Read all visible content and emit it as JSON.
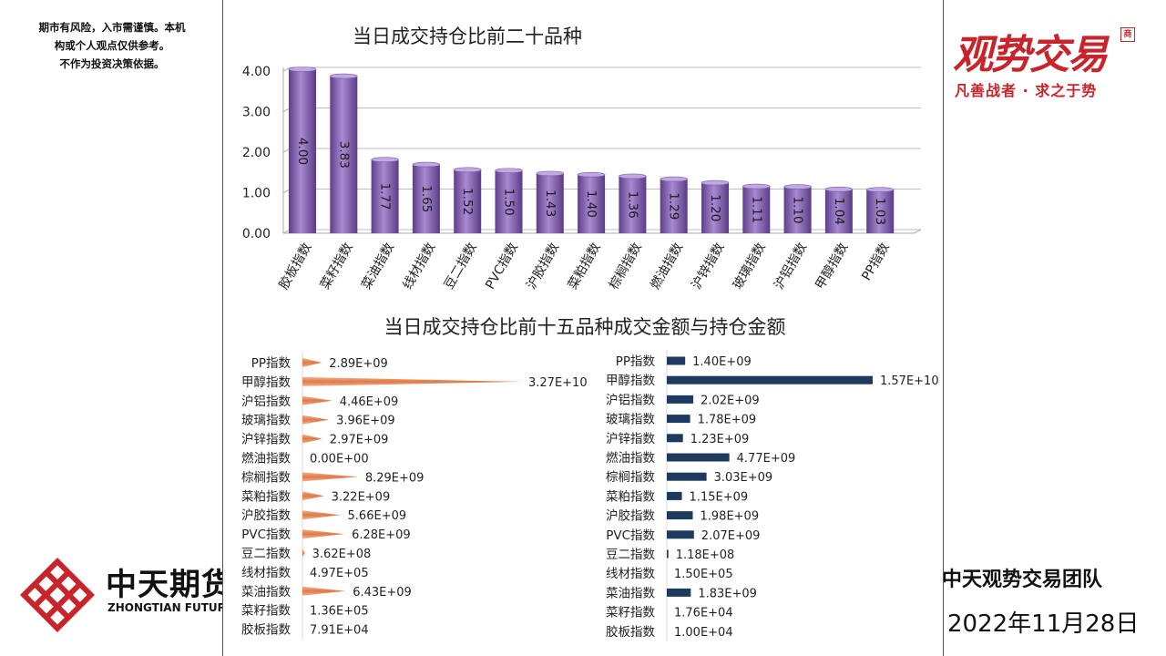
{
  "disclaimer": {
    "line1": "期市有风险，入市需谨慎。本机",
    "line2": "构或个人观点仅供参考。",
    "line3": "不作为投资决策依据。"
  },
  "logo_left": {
    "cn": "中天期货",
    "en": "ZHONGTIAN FUTURES"
  },
  "brand": {
    "title": "观势交易",
    "seal": "商",
    "slogan": "凡善战者 · 求之于势"
  },
  "footer": {
    "team": "中天观势交易团队",
    "date": "2022年11月28日"
  },
  "colors": {
    "bar_purple": "#8a64b4",
    "bar_orange": "#e8956a",
    "bar_navy": "#1f3a5f",
    "brand_red": "#c8242c"
  },
  "chart_data": [
    {
      "type": "bar",
      "title": "当日成交持仓比前二十品种",
      "categories": [
        "胶板指数",
        "菜籽指数",
        "菜油指数",
        "线材指数",
        "豆二指数",
        "PVC指数",
        "沪胶指数",
        "菜粕指数",
        "棕榈指数",
        "燃油指数",
        "沪锌指数",
        "玻璃指数",
        "沪铝指数",
        "甲醇指数",
        "PP指数"
      ],
      "values": [
        4.0,
        3.83,
        1.77,
        1.65,
        1.52,
        1.5,
        1.43,
        1.4,
        1.36,
        1.29,
        1.2,
        1.11,
        1.1,
        1.04,
        1.03
      ],
      "ylim": [
        0,
        4
      ],
      "yticks": [
        "0.00",
        "1.00",
        "2.00",
        "3.00",
        "4.00"
      ],
      "grid": true
    },
    {
      "type": "bar",
      "orientation": "horizontal",
      "title": "当日成交持仓比前十五品种成交金额与持仓金额",
      "series_name": "成交金额",
      "categories": [
        "PP指数",
        "甲醇指数",
        "沪铝指数",
        "玻璃指数",
        "沪锌指数",
        "燃油指数",
        "棕榈指数",
        "菜粕指数",
        "沪胶指数",
        "PVC指数",
        "豆二指数",
        "线材指数",
        "菜油指数",
        "菜籽指数",
        "胶板指数"
      ],
      "values": [
        2890000000.0,
        32700000000.0,
        4460000000.0,
        3960000000.0,
        2970000000.0,
        0,
        8290000000.0,
        3220000000.0,
        5660000000.0,
        6280000000.0,
        362000000.0,
        497000.0,
        6430000000.0,
        136000.0,
        79100.0
      ],
      "labels": [
        "2.89E+09",
        "3.27E+10",
        "4.46E+09",
        "3.96E+09",
        "2.97E+09",
        "0.00E+00",
        "8.29E+09",
        "3.22E+09",
        "5.66E+09",
        "6.28E+09",
        "3.62E+08",
        "4.97E+05",
        "6.43E+09",
        "1.36E+05",
        "7.91E+04"
      ]
    },
    {
      "type": "bar",
      "orientation": "horizontal",
      "series_name": "持仓金额",
      "categories": [
        "PP指数",
        "甲醇指数",
        "沪铝指数",
        "玻璃指数",
        "沪锌指数",
        "燃油指数",
        "棕榈指数",
        "菜粕指数",
        "沪胶指数",
        "PVC指数",
        "豆二指数",
        "线材指数",
        "菜油指数",
        "菜籽指数",
        "胶板指数"
      ],
      "values": [
        1400000000.0,
        15700000000.0,
        2020000000.0,
        1780000000.0,
        1230000000.0,
        4770000000.0,
        3030000000.0,
        1150000000.0,
        1980000000.0,
        2070000000.0,
        118000000.0,
        150000.0,
        1830000000.0,
        17600.0,
        10000.0
      ],
      "labels": [
        "1.40E+09",
        "1.57E+10",
        "2.02E+09",
        "1.78E+09",
        "1.23E+09",
        "4.77E+09",
        "3.03E+09",
        "1.15E+09",
        "1.98E+09",
        "2.07E+09",
        "1.18E+08",
        "1.50E+05",
        "1.83E+09",
        "1.76E+04",
        "1.00E+04"
      ]
    }
  ]
}
